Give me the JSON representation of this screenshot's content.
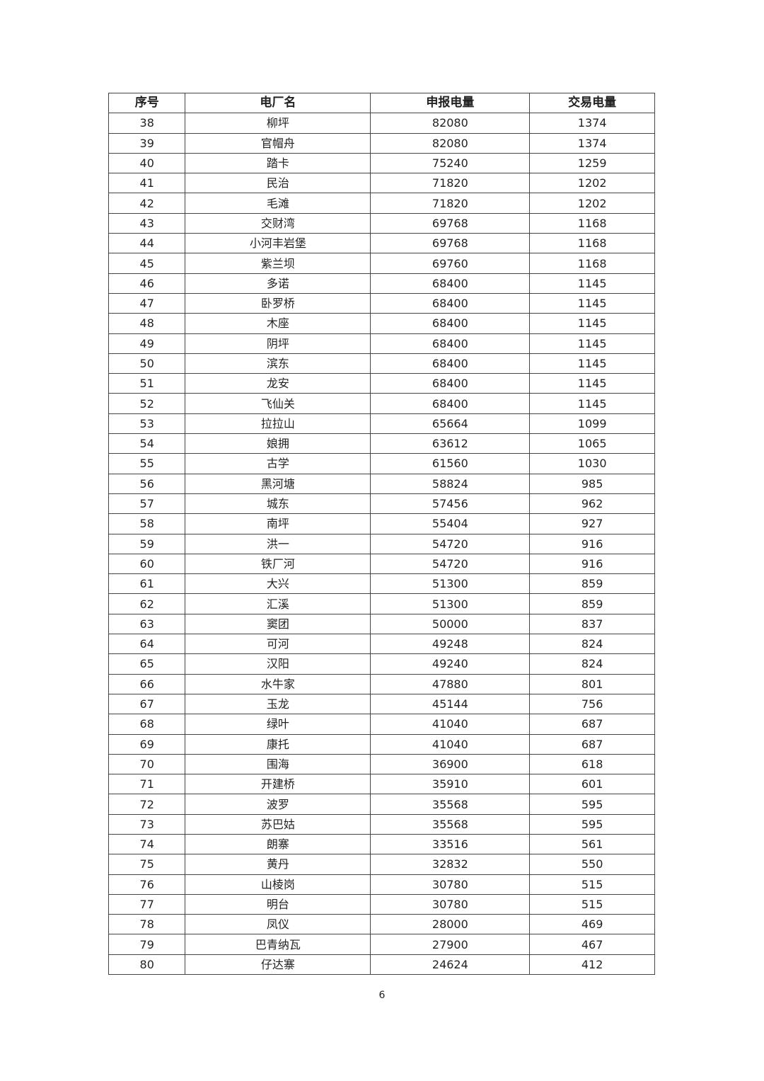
{
  "table": {
    "headers": [
      "序号",
      "电厂名",
      "申报电量",
      "交易电量"
    ],
    "rows": [
      [
        "38",
        "柳坪",
        "82080",
        "1374"
      ],
      [
        "39",
        "官帽舟",
        "82080",
        "1374"
      ],
      [
        "40",
        "踏卡",
        "75240",
        "1259"
      ],
      [
        "41",
        "民治",
        "71820",
        "1202"
      ],
      [
        "42",
        "毛滩",
        "71820",
        "1202"
      ],
      [
        "43",
        "交财湾",
        "69768",
        "1168"
      ],
      [
        "44",
        "小河丰岩堡",
        "69768",
        "1168"
      ],
      [
        "45",
        "紫兰坝",
        "69760",
        "1168"
      ],
      [
        "46",
        "多诺",
        "68400",
        "1145"
      ],
      [
        "47",
        "卧罗桥",
        "68400",
        "1145"
      ],
      [
        "48",
        "木座",
        "68400",
        "1145"
      ],
      [
        "49",
        "阴坪",
        "68400",
        "1145"
      ],
      [
        "50",
        "滨东",
        "68400",
        "1145"
      ],
      [
        "51",
        "龙安",
        "68400",
        "1145"
      ],
      [
        "52",
        "飞仙关",
        "68400",
        "1145"
      ],
      [
        "53",
        "拉拉山",
        "65664",
        "1099"
      ],
      [
        "54",
        "娘拥",
        "63612",
        "1065"
      ],
      [
        "55",
        "古学",
        "61560",
        "1030"
      ],
      [
        "56",
        "黑河塘",
        "58824",
        "985"
      ],
      [
        "57",
        "城东",
        "57456",
        "962"
      ],
      [
        "58",
        "南坪",
        "55404",
        "927"
      ],
      [
        "59",
        "洪一",
        "54720",
        "916"
      ],
      [
        "60",
        "铁厂河",
        "54720",
        "916"
      ],
      [
        "61",
        "大兴",
        "51300",
        "859"
      ],
      [
        "62",
        "汇溪",
        "51300",
        "859"
      ],
      [
        "63",
        "窦团",
        "50000",
        "837"
      ],
      [
        "64",
        "可河",
        "49248",
        "824"
      ],
      [
        "65",
        "汉阳",
        "49240",
        "824"
      ],
      [
        "66",
        "水牛家",
        "47880",
        "801"
      ],
      [
        "67",
        "玉龙",
        "45144",
        "756"
      ],
      [
        "68",
        "绿叶",
        "41040",
        "687"
      ],
      [
        "69",
        "康托",
        "41040",
        "687"
      ],
      [
        "70",
        "围海",
        "36900",
        "618"
      ],
      [
        "71",
        "开建桥",
        "35910",
        "601"
      ],
      [
        "72",
        "波罗",
        "35568",
        "595"
      ],
      [
        "73",
        "苏巴姑",
        "35568",
        "595"
      ],
      [
        "74",
        "朗寨",
        "33516",
        "561"
      ],
      [
        "75",
        "黄丹",
        "32832",
        "550"
      ],
      [
        "76",
        "山棱岗",
        "30780",
        "515"
      ],
      [
        "77",
        "明台",
        "30780",
        "515"
      ],
      [
        "78",
        "凤仪",
        "28000",
        "469"
      ],
      [
        "79",
        "巴青纳瓦",
        "27900",
        "467"
      ],
      [
        "80",
        "仔达寨",
        "24624",
        "412"
      ]
    ]
  },
  "page_number": "6"
}
